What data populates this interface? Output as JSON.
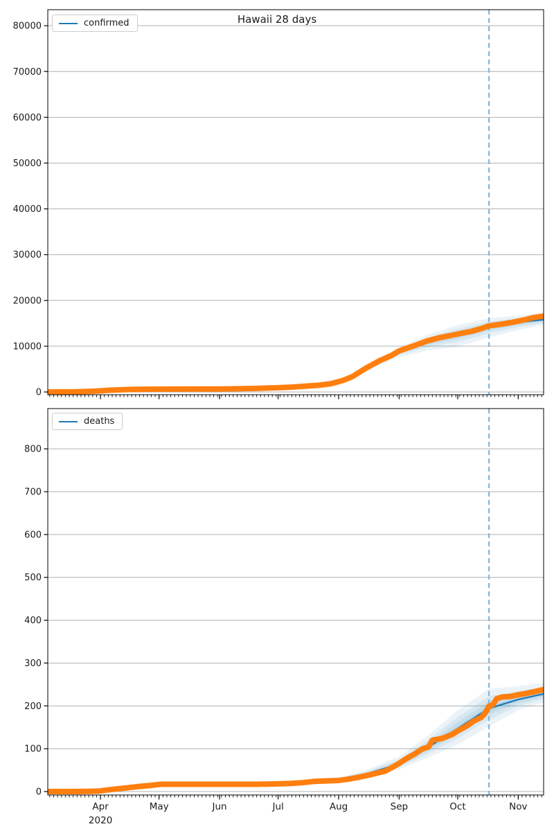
{
  "chart_title": "Hawaii 28 days",
  "chart_data": [
    {
      "type": "line",
      "title": "Hawaii 28 days",
      "legend_label": "confirmed",
      "legend_position": "upper left",
      "grid": "horizontal-y",
      "grid_color": "#b0b0b0",
      "x_start": "2020-03-05",
      "x_end": "2020-11-14",
      "x_major_ticks": [
        "2020-04-01",
        "2020-05-01",
        "2020-06-01",
        "2020-07-01",
        "2020-08-01",
        "2020-09-01",
        "2020-10-01",
        "2020-11-01"
      ],
      "x_tick_labels": [],
      "x_year_label": "",
      "ylim": [
        -600,
        83500
      ],
      "yticks": [
        0,
        10000,
        20000,
        30000,
        40000,
        50000,
        60000,
        70000,
        80000
      ],
      "forecast_start_date": "2020-10-17",
      "forecast_line_color": "#8ab8da",
      "series": [
        {
          "name": "confirmed_actual",
          "color": "#ff7f0e",
          "style": "thick-markers",
          "points": [
            [
              "2020-03-05",
              1
            ],
            [
              "2020-03-12",
              4
            ],
            [
              "2020-03-18",
              20
            ],
            [
              "2020-03-24",
              100
            ],
            [
              "2020-03-28",
              160
            ],
            [
              "2020-04-01",
              258
            ],
            [
              "2020-04-05",
              360
            ],
            [
              "2020-04-09",
              440
            ],
            [
              "2020-04-15",
              530
            ],
            [
              "2020-04-22",
              586
            ],
            [
              "2020-05-01",
              618
            ],
            [
              "2020-05-10",
              632
            ],
            [
              "2020-05-20",
              642
            ],
            [
              "2020-06-01",
              655
            ],
            [
              "2020-06-10",
              700
            ],
            [
              "2020-06-20",
              780
            ],
            [
              "2020-07-01",
              926
            ],
            [
              "2020-07-08",
              1071
            ],
            [
              "2020-07-15",
              1264
            ],
            [
              "2020-07-22",
              1480
            ],
            [
              "2020-07-28",
              1800
            ],
            [
              "2020-08-03",
              2490
            ],
            [
              "2020-08-08",
              3346
            ],
            [
              "2020-08-15",
              5200
            ],
            [
              "2020-08-22",
              6840
            ],
            [
              "2020-08-28",
              7960
            ],
            [
              "2020-09-01",
              8970
            ],
            [
              "2020-09-05",
              9560
            ],
            [
              "2020-09-10",
              10310
            ],
            [
              "2020-09-15",
              11100
            ],
            [
              "2020-09-22",
              11890
            ],
            [
              "2020-09-28",
              12390
            ],
            [
              "2020-10-03",
              12840
            ],
            [
              "2020-10-08",
              13240
            ],
            [
              "2020-10-13",
              13850
            ],
            [
              "2020-10-17",
              14440
            ],
            [
              "2020-10-22",
              14730
            ],
            [
              "2020-10-28",
              15130
            ],
            [
              "2020-11-01",
              15480
            ],
            [
              "2020-11-05",
              15850
            ],
            [
              "2020-11-09",
              16270
            ],
            [
              "2020-11-14",
              16570
            ]
          ]
        },
        {
          "name": "confirmed_predicted",
          "color": "#1f77b4",
          "style": "line",
          "points": [
            [
              "2020-07-01",
              930
            ],
            [
              "2020-07-15",
              1280
            ],
            [
              "2020-08-01",
              2300
            ],
            [
              "2020-08-15",
              5100
            ],
            [
              "2020-09-01",
              8800
            ],
            [
              "2020-09-08",
              9900
            ],
            [
              "2020-09-15",
              10900
            ],
            [
              "2020-10-01",
              12600
            ],
            [
              "2020-10-17",
              14200
            ],
            [
              "2020-11-01",
              15200
            ],
            [
              "2020-11-14",
              15800
            ]
          ]
        }
      ],
      "uncertainty_band": {
        "color": "#1f77b4",
        "levels": [
          1,
          0.62,
          0.36,
          0.16
        ],
        "anchors": [
          [
            "2020-07-01",
            880,
            990
          ],
          [
            "2020-07-15",
            1200,
            1380
          ],
          [
            "2020-08-01",
            2100,
            2520
          ],
          [
            "2020-08-15",
            4600,
            5600
          ],
          [
            "2020-09-01",
            7600,
            9700
          ],
          [
            "2020-09-15",
            9000,
            12400
          ],
          [
            "2020-10-01",
            9900,
            14600
          ],
          [
            "2020-10-17",
            11900,
            16100
          ],
          [
            "2020-11-01",
            13500,
            16700
          ],
          [
            "2020-11-14",
            14700,
            17200
          ]
        ]
      }
    },
    {
      "type": "line",
      "title": "",
      "legend_label": "deaths",
      "legend_position": "upper left",
      "grid": "horizontal-y",
      "grid_color": "#b0b0b0",
      "x_start": "2020-03-05",
      "x_end": "2020-11-14",
      "x_major_ticks": [
        "2020-04-01",
        "2020-05-01",
        "2020-06-01",
        "2020-07-01",
        "2020-08-01",
        "2020-09-01",
        "2020-10-01",
        "2020-11-01"
      ],
      "x_tick_labels": [
        "Apr",
        "May",
        "Jun",
        "Jul",
        "Aug",
        "Sep",
        "Oct",
        "Nov"
      ],
      "x_year_label": "2020",
      "ylim": [
        -8,
        894
      ],
      "yticks": [
        0,
        100,
        200,
        300,
        400,
        500,
        600,
        700,
        800
      ],
      "forecast_start_date": "2020-10-17",
      "forecast_line_color": "#8ab8da",
      "series": [
        {
          "name": "deaths_actual",
          "color": "#ff7f0e",
          "style": "thick-markers",
          "points": [
            [
              "2020-03-05",
              0
            ],
            [
              "2020-03-20",
              0
            ],
            [
              "2020-03-31",
              1
            ],
            [
              "2020-04-05",
              4
            ],
            [
              "2020-04-09",
              6
            ],
            [
              "2020-04-15",
              9
            ],
            [
              "2020-04-21",
              12
            ],
            [
              "2020-04-26",
              14
            ],
            [
              "2020-05-02",
              17
            ],
            [
              "2020-05-20",
              17
            ],
            [
              "2020-06-05",
              17
            ],
            [
              "2020-06-20",
              17
            ],
            [
              "2020-07-01",
              18
            ],
            [
              "2020-07-08",
              19
            ],
            [
              "2020-07-14",
              21
            ],
            [
              "2020-07-20",
              24
            ],
            [
              "2020-07-26",
              25
            ],
            [
              "2020-08-01",
              26
            ],
            [
              "2020-08-06",
              29
            ],
            [
              "2020-08-12",
              34
            ],
            [
              "2020-08-18",
              40
            ],
            [
              "2020-08-25",
              48
            ],
            [
              "2020-08-31",
              63
            ],
            [
              "2020-09-04",
              75
            ],
            [
              "2020-09-09",
              88
            ],
            [
              "2020-09-13",
              100
            ],
            [
              "2020-09-16",
              104
            ],
            [
              "2020-09-18",
              120
            ],
            [
              "2020-09-23",
              124
            ],
            [
              "2020-09-28",
              133
            ],
            [
              "2020-10-02",
              144
            ],
            [
              "2020-10-06",
              154
            ],
            [
              "2020-10-09",
              164
            ],
            [
              "2020-10-13",
              173
            ],
            [
              "2020-10-15",
              183
            ],
            [
              "2020-10-17",
              199
            ],
            [
              "2020-10-19",
              203
            ],
            [
              "2020-10-21",
              217
            ],
            [
              "2020-10-24",
              221
            ],
            [
              "2020-10-28",
              222
            ],
            [
              "2020-11-01",
              226
            ],
            [
              "2020-11-05",
              229
            ],
            [
              "2020-11-09",
              233
            ],
            [
              "2020-11-14",
              238
            ]
          ]
        },
        {
          "name": "deaths_predicted",
          "color": "#1f77b4",
          "style": "line",
          "points": [
            [
              "2020-06-01",
              17
            ],
            [
              "2020-07-01",
              18
            ],
            [
              "2020-08-01",
              27
            ],
            [
              "2020-08-15",
              41
            ],
            [
              "2020-09-01",
              64
            ],
            [
              "2020-09-15",
              101
            ],
            [
              "2020-10-01",
              147
            ],
            [
              "2020-10-17",
              194
            ],
            [
              "2020-11-01",
              215
            ],
            [
              "2020-11-14",
              228
            ]
          ]
        }
      ],
      "uncertainty_band": {
        "color": "#1f77b4",
        "levels": [
          1,
          0.62,
          0.36,
          0.16
        ],
        "anchors": [
          [
            "2020-06-01",
            16,
            18
          ],
          [
            "2020-07-01",
            16,
            20
          ],
          [
            "2020-07-15",
            19,
            26
          ],
          [
            "2020-08-01",
            22,
            32
          ],
          [
            "2020-08-15",
            33,
            50
          ],
          [
            "2020-09-01",
            52,
            82
          ],
          [
            "2020-09-15",
            78,
            128
          ],
          [
            "2020-10-01",
            110,
            190
          ],
          [
            "2020-10-17",
            152,
            240
          ],
          [
            "2020-11-01",
            190,
            246
          ],
          [
            "2020-11-14",
            208,
            254
          ]
        ]
      }
    }
  ]
}
